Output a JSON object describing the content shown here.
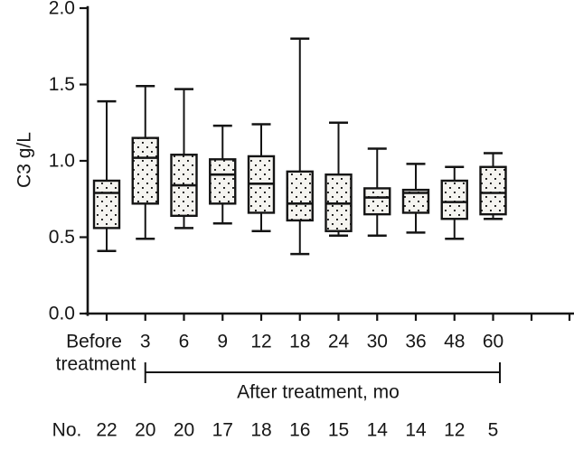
{
  "chart_data": {
    "type": "box",
    "title": "",
    "ylabel": "C3 g/L",
    "xlabel": "",
    "ylim": [
      0,
      2.0
    ],
    "yticks": [
      "0.0",
      "0.5",
      "1.0",
      "1.5",
      "2.0"
    ],
    "grid": false,
    "legend": "none",
    "before_label_lines": [
      "Before",
      "treatment"
    ],
    "after_bracket_label": "After treatment, mo",
    "after_bracket_span": [
      "3",
      "60"
    ],
    "counts_row_label": "No.",
    "categories": [
      "Before treatment",
      "3",
      "6",
      "9",
      "12",
      "18",
      "24",
      "30",
      "36",
      "48",
      "60"
    ],
    "counts": [
      22,
      20,
      20,
      17,
      18,
      16,
      15,
      14,
      14,
      12,
      5
    ],
    "boxes": [
      {
        "category": "Before treatment",
        "n": 22,
        "whisker_low": 0.41,
        "q1": 0.56,
        "median": 0.79,
        "q3": 0.87,
        "whisker_high": 1.39
      },
      {
        "category": "3",
        "n": 20,
        "whisker_low": 0.49,
        "q1": 0.72,
        "median": 1.02,
        "q3": 1.15,
        "whisker_high": 1.49
      },
      {
        "category": "6",
        "n": 20,
        "whisker_low": 0.56,
        "q1": 0.64,
        "median": 0.84,
        "q3": 1.04,
        "whisker_high": 1.47
      },
      {
        "category": "9",
        "n": 17,
        "whisker_low": 0.59,
        "q1": 0.72,
        "median": 0.91,
        "q3": 1.01,
        "whisker_high": 1.23
      },
      {
        "category": "12",
        "n": 18,
        "whisker_low": 0.54,
        "q1": 0.66,
        "median": 0.85,
        "q3": 1.03,
        "whisker_high": 1.24
      },
      {
        "category": "18",
        "n": 16,
        "whisker_low": 0.39,
        "q1": 0.61,
        "median": 0.72,
        "q3": 0.93,
        "whisker_high": 1.8
      },
      {
        "category": "24",
        "n": 15,
        "whisker_low": 0.51,
        "q1": 0.54,
        "median": 0.72,
        "q3": 0.91,
        "whisker_high": 1.25
      },
      {
        "category": "30",
        "n": 14,
        "whisker_low": 0.51,
        "q1": 0.65,
        "median": 0.76,
        "q3": 0.82,
        "whisker_high": 1.08
      },
      {
        "category": "36",
        "n": 14,
        "whisker_low": 0.53,
        "q1": 0.66,
        "median": 0.79,
        "q3": 0.81,
        "whisker_high": 0.98
      },
      {
        "category": "48",
        "n": 12,
        "whisker_low": 0.49,
        "q1": 0.62,
        "median": 0.73,
        "q3": 0.87,
        "whisker_high": 0.96
      },
      {
        "category": "60",
        "n": 5,
        "whisker_low": 0.62,
        "q1": 0.65,
        "median": 0.79,
        "q3": 0.96,
        "whisker_high": 1.05
      }
    ],
    "colors": {
      "stroke": "#141414",
      "box_fill": "#f5f4f0",
      "background": "#ffffff"
    }
  }
}
